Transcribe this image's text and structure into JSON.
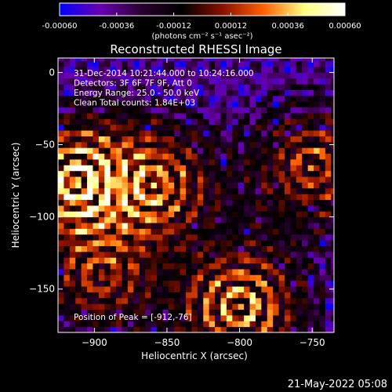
{
  "chart_data": {
    "type": "heatmap",
    "title": "Reconstructed RHESSI Image",
    "xlabel": "Heliocentric X (arcsec)",
    "ylabel": "Heliocentric Y (arcsec)",
    "xlim": [
      -925,
      -735
    ],
    "ylim": [
      -180,
      10
    ],
    "x_ticks": [
      -900,
      -850,
      -800,
      -750
    ],
    "y_ticks": [
      0,
      -50,
      -100,
      -150
    ],
    "colorbar": {
      "range": [
        -0.0006,
        0.0006
      ],
      "ticks": [
        "-0.00060",
        "-0.00036",
        "-0.00012",
        "0.00012",
        "0.00036",
        "0.00060"
      ],
      "label": "(photons cm⁻² s⁻¹ asec⁻²)",
      "colormap": [
        "#0000ff",
        "#6a00b0",
        "#2a0030",
        "#000000",
        "#8a1000",
        "#ff6000",
        "#ffff80",
        "#ffffff"
      ]
    },
    "info_lines": [
      "31-Dec-2014 10:21:44.000 to 10:24:16.000",
      "Detectors: 3F 6F 7F 9F, Att 0",
      "Energy Range: 25.0 - 50.0 keV",
      "Clean    Total counts: 1.84E+03"
    ],
    "peak_text": "Position of Peak = [-912,-76]",
    "bright_sources": [
      {
        "x": -912,
        "y": -76,
        "relative_intensity": 1.0
      },
      {
        "x": -860,
        "y": -78,
        "relative_intensity": 0.75
      },
      {
        "x": -800,
        "y": -162,
        "relative_intensity": 0.85
      },
      {
        "x": -750,
        "y": -65,
        "relative_intensity": 0.6
      },
      {
        "x": -895,
        "y": -140,
        "relative_intensity": 0.5
      }
    ]
  },
  "footer": {
    "timestamp": "21-May-2022 05:08"
  }
}
